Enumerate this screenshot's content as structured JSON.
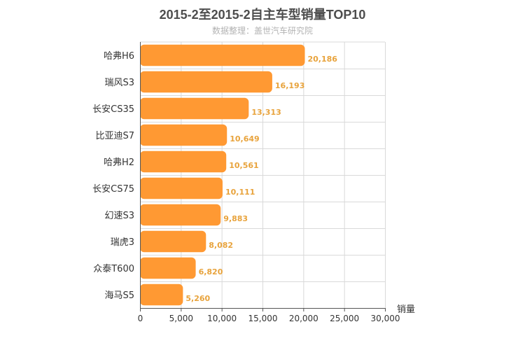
{
  "chart_data": {
    "type": "bar",
    "orientation": "horizontal",
    "title": "2015-2至2015-2自主车型销量TOP10",
    "subtitle": "数据整理：盖世汽车研究院",
    "categories": [
      "哈弗H6",
      "瑞风S3",
      "长安CS35",
      "比亚迪S7",
      "哈弗H2",
      "长安CS75",
      "幻速S3",
      "瑞虎3",
      "众泰T600",
      "海马S5"
    ],
    "values": [
      20186,
      16193,
      13313,
      10649,
      10561,
      10111,
      9883,
      8082,
      6820,
      5260
    ],
    "value_labels": [
      "20,186",
      "16,193",
      "13,313",
      "10,649",
      "10,561",
      "10,111",
      "9,883",
      "8,082",
      "6,820",
      "5,260"
    ],
    "xlabel": "销量",
    "xlim": [
      0,
      30000
    ],
    "xticks": [
      0,
      5000,
      10000,
      15000,
      20000,
      25000,
      30000
    ],
    "xtick_labels": [
      "0",
      "5,000",
      "10,000",
      "15,000",
      "20,000",
      "25,000",
      "30,000"
    ],
    "grid": true,
    "bar_color": "#ff9933",
    "label_color": "#e8a33c"
  }
}
